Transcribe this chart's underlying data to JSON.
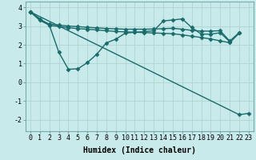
{
  "xlabel": "Humidex (Indice chaleur)",
  "bg_color": "#c8eaea",
  "grid_color": "#b0d4d0",
  "line_color": "#1a6b6b",
  "line1_x": [
    0,
    1,
    2,
    3,
    4,
    5,
    6,
    7,
    8,
    9,
    10,
    11,
    12,
    13,
    14,
    15,
    16,
    17,
    18,
    19,
    20,
    21,
    22
  ],
  "line1_y": [
    3.75,
    3.35,
    3.1,
    3.05,
    3.0,
    2.97,
    2.93,
    2.9,
    2.87,
    2.85,
    2.83,
    2.83,
    2.83,
    2.84,
    2.86,
    2.88,
    2.83,
    2.77,
    2.73,
    2.73,
    2.75,
    2.2,
    2.65
  ],
  "line2_x": [
    0,
    1,
    2,
    3,
    4,
    5,
    6,
    7,
    8,
    9,
    10,
    11,
    12,
    13,
    14,
    15,
    16,
    17,
    18,
    19,
    20,
    21
  ],
  "line2_y": [
    3.75,
    3.3,
    3.05,
    1.6,
    0.7,
    0.72,
    1.05,
    1.5,
    2.1,
    2.3,
    2.62,
    2.67,
    2.7,
    2.75,
    3.27,
    3.32,
    3.38,
    2.92,
    2.57,
    2.57,
    2.64,
    2.17
  ],
  "line3_x": [
    0,
    2,
    3,
    4,
    5,
    6,
    7,
    8,
    9,
    10,
    11,
    12,
    13,
    14,
    15,
    16,
    17,
    18,
    19,
    20,
    21,
    22
  ],
  "line3_y": [
    3.75,
    3.03,
    2.98,
    2.91,
    2.86,
    2.83,
    2.79,
    2.75,
    2.71,
    2.69,
    2.67,
    2.65,
    2.63,
    2.61,
    2.59,
    2.53,
    2.46,
    2.39,
    2.31,
    2.21,
    2.11,
    2.62
  ],
  "line4_x": [
    0,
    22,
    23
  ],
  "line4_y": [
    3.75,
    -1.72,
    -1.65
  ],
  "xlim": [
    -0.5,
    23.5
  ],
  "ylim": [
    -2.6,
    4.3
  ],
  "yticks": [
    -2,
    -1,
    0,
    1,
    2,
    3,
    4
  ],
  "xticks": [
    0,
    1,
    2,
    3,
    4,
    5,
    6,
    7,
    8,
    9,
    10,
    11,
    12,
    13,
    14,
    15,
    16,
    17,
    18,
    19,
    20,
    21,
    22,
    23
  ],
  "markersize": 2.5,
  "linewidth": 1.0,
  "xlabel_fontsize": 7,
  "tick_fontsize": 6
}
